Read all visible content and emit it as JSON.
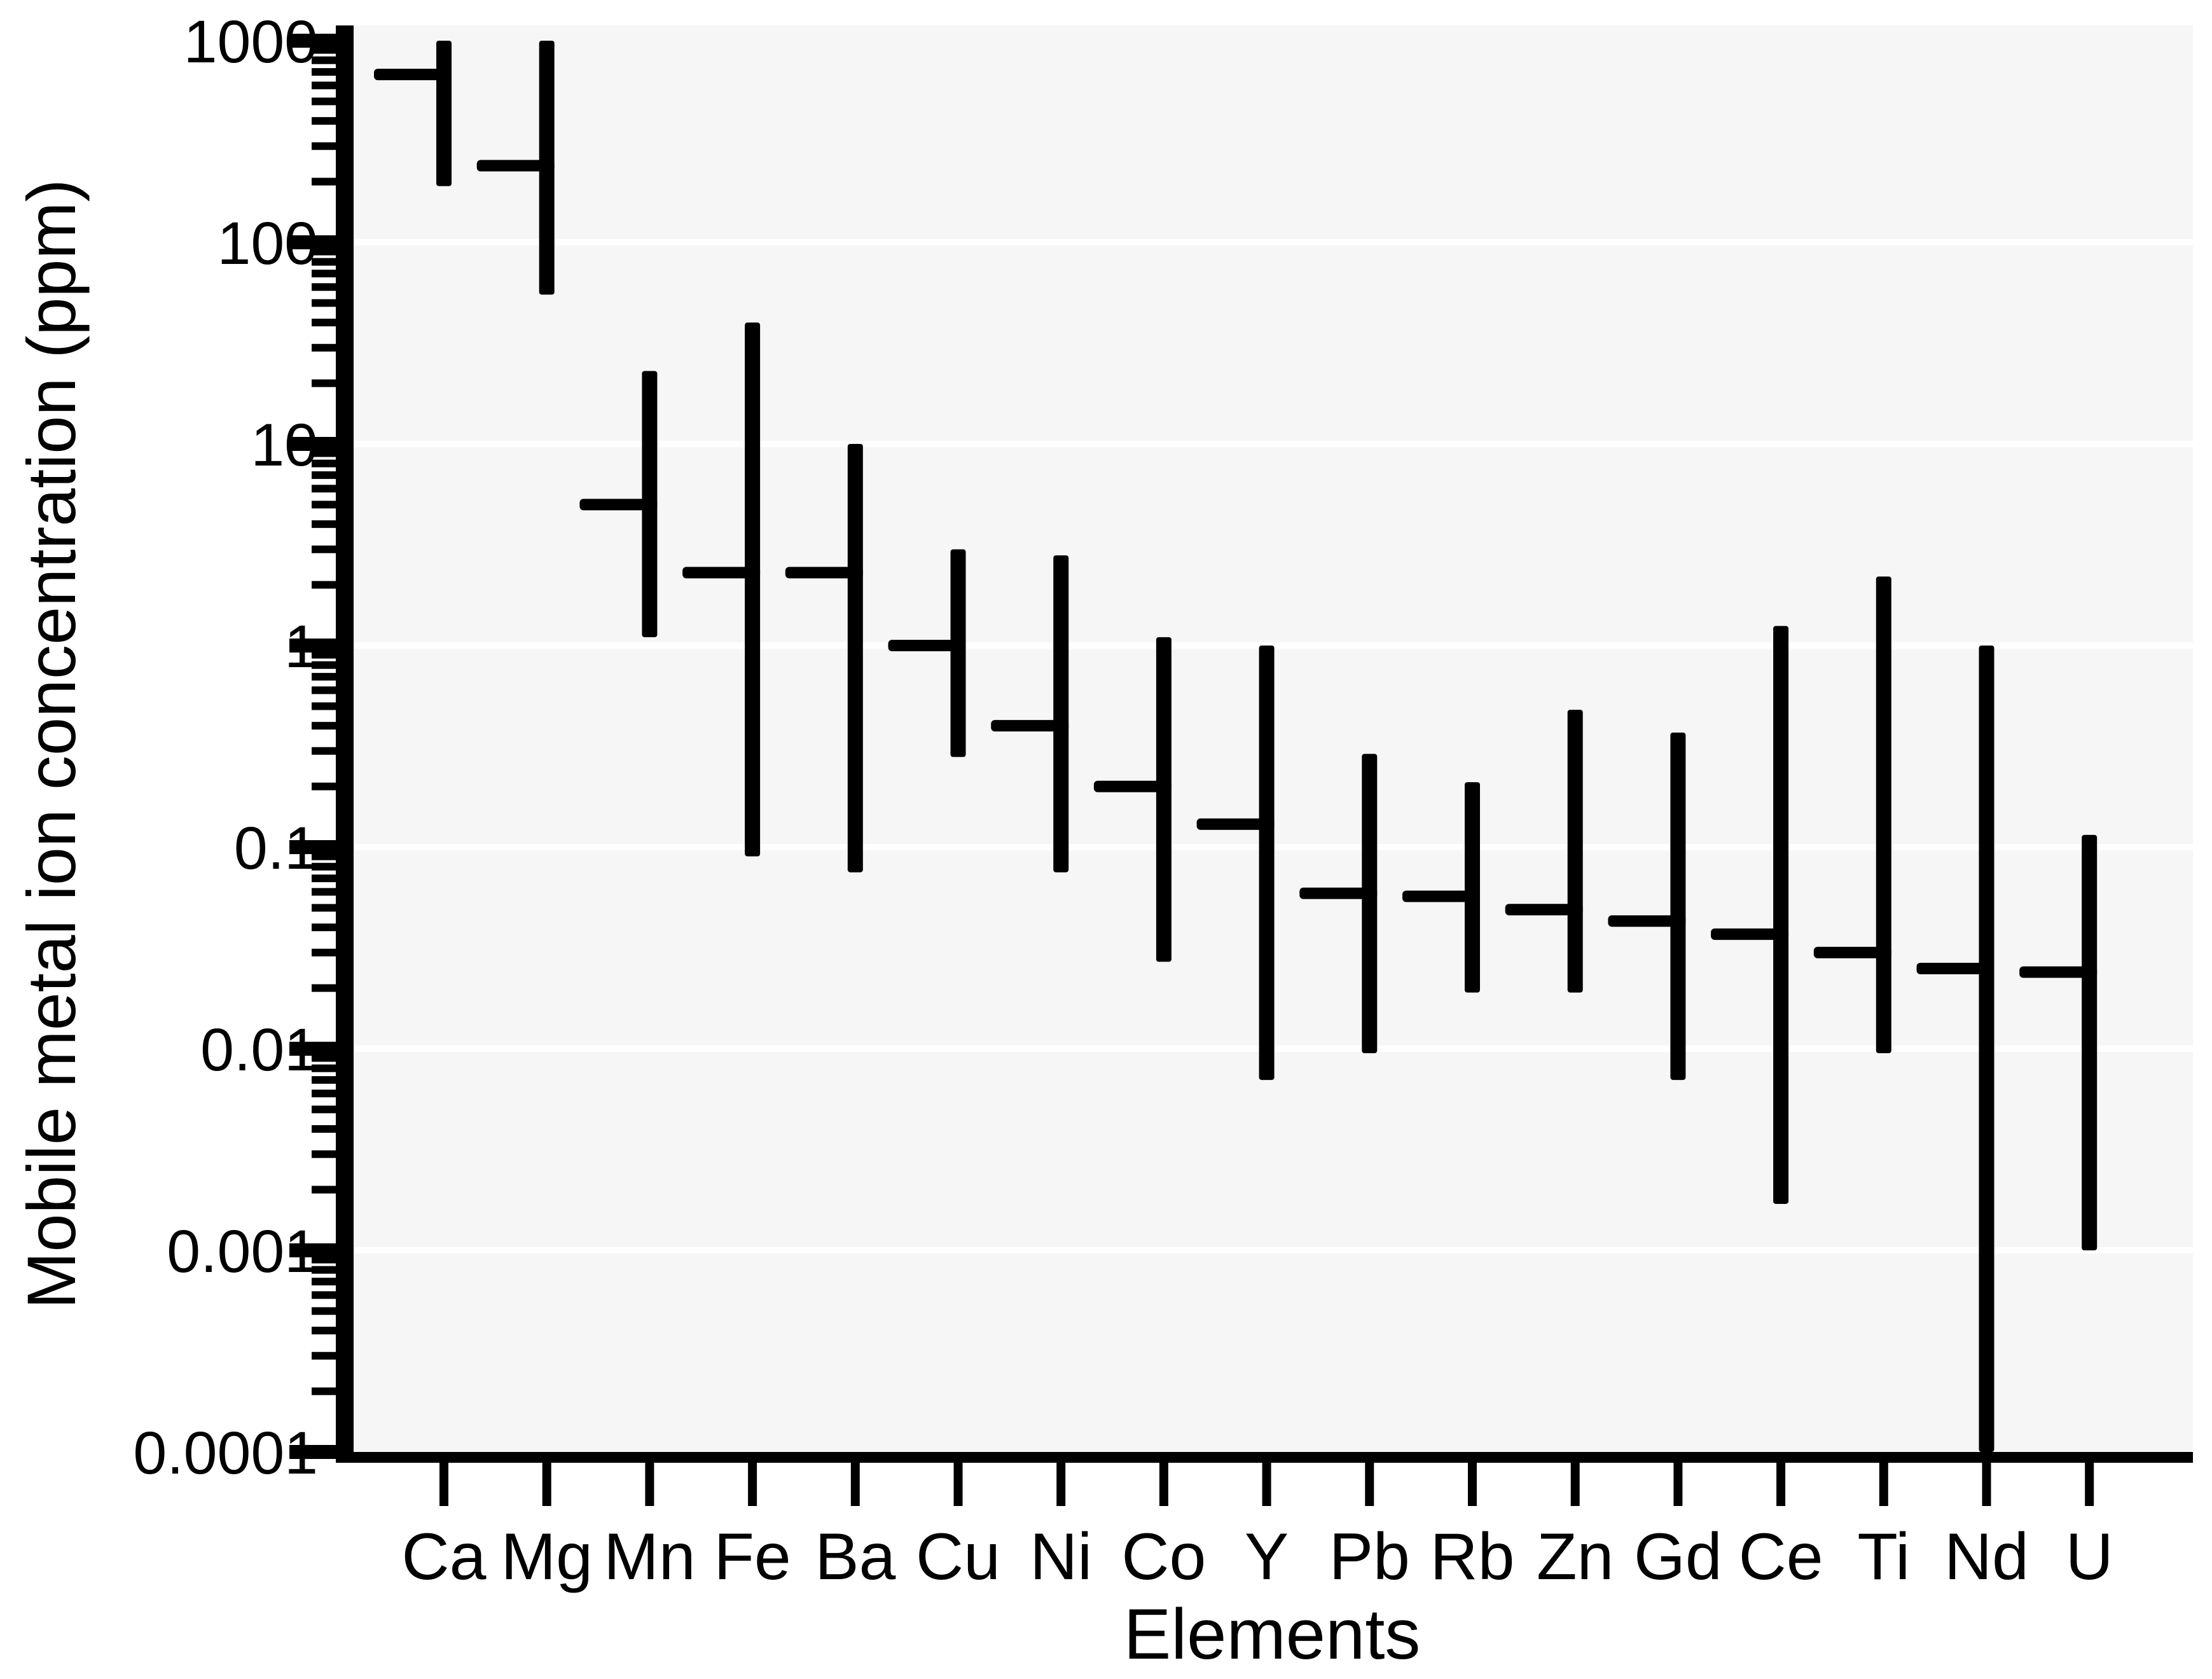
{
  "chart_data": {
    "type": "bar",
    "subtype": "log-range-floating-bars-with-median-tick",
    "title": "",
    "xlabel": "Elements",
    "ylabel": "Mobile metal ion concentration (ppm)",
    "ylim": [
      0.0001,
      1000
    ],
    "yscale": "log10",
    "ytick_labels": [
      "1000",
      "100",
      "10",
      "1",
      "0.1",
      "0.01",
      "0.001",
      "0.0001"
    ],
    "ytick_values": [
      1000,
      100,
      10,
      1,
      0.1,
      0.01,
      0.001,
      0.0001
    ],
    "grid": "white horizontal gridlines at each decade on pale grey plot background, log minor ticks on y-axis",
    "legend": "none",
    "categories": [
      "Ca",
      "Mg",
      "Mn",
      "Fe",
      "Ba",
      "Cu",
      "Ni",
      "Co",
      "Y",
      "Pb",
      "Rb",
      "Zn",
      "Gd",
      "Ce",
      "Ti",
      "Nd",
      "U"
    ],
    "series": [
      {
        "name": "min",
        "values": [
          190,
          55,
          1.1,
          0.09,
          0.075,
          0.28,
          0.075,
          0.027,
          0.007,
          0.0095,
          0.019,
          0.019,
          0.007,
          0.0017,
          0.0095,
          0.0001,
          0.001
        ]
      },
      {
        "name": "median",
        "values": [
          680,
          240,
          5,
          2.3,
          2.3,
          1.0,
          0.4,
          0.2,
          0.13,
          0.059,
          0.057,
          0.049,
          0.043,
          0.037,
          0.03,
          0.025,
          0.024
        ]
      },
      {
        "name": "max",
        "values": [
          1000,
          1000,
          23,
          40,
          10,
          3.0,
          2.8,
          1.1,
          1.0,
          0.29,
          0.21,
          0.48,
          0.37,
          1.25,
          2.2,
          1.0,
          0.115
        ]
      }
    ],
    "colors": {
      "bar": "#000000",
      "axis": "#000000",
      "text": "#000000",
      "plot_bg": "#f6f6f6",
      "gridline": "#ffffff",
      "background": "#ffffff"
    }
  }
}
